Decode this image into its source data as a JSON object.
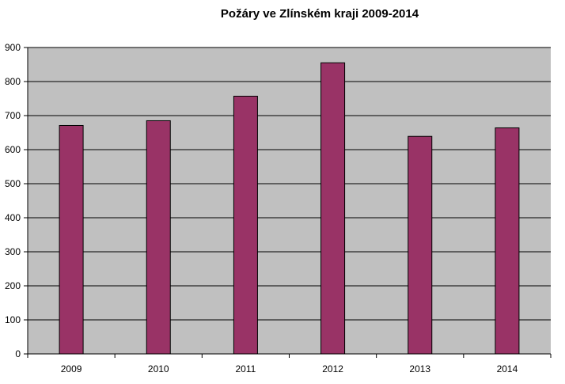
{
  "chart_data": {
    "type": "bar",
    "title": "Požáry ve Zlínském kraji 2009-2014",
    "categories": [
      "2009",
      "2010",
      "2011",
      "2012",
      "2013",
      "2014"
    ],
    "values": [
      671,
      685,
      757,
      855,
      639,
      664
    ],
    "ylim": [
      0,
      900
    ],
    "yticks": [
      0,
      100,
      200,
      300,
      400,
      500,
      600,
      700,
      800,
      900
    ],
    "xlabel": "",
    "ylabel": "",
    "grid": true,
    "legend": "none",
    "colors": {
      "bar": "#993366",
      "plot_background": "#c0c0c0",
      "gridline": "#000000"
    }
  }
}
